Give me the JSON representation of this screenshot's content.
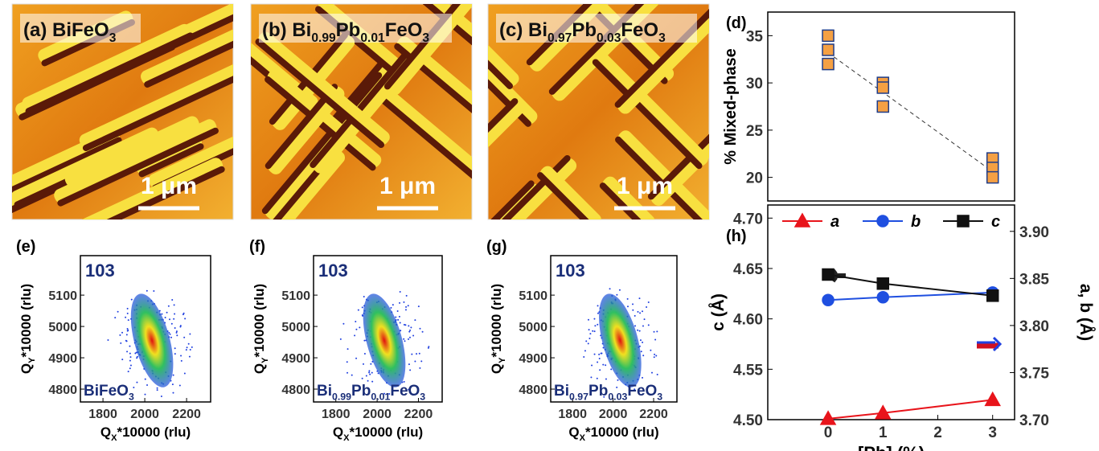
{
  "afm_panels": [
    {
      "label_parts": [
        "(a) BiFeO",
        "3"
      ],
      "scale_bar": "1 μm"
    },
    {
      "label_parts": [
        "(b) Bi",
        "0.99",
        "Pb",
        "0.01",
        "FeO",
        "3"
      ],
      "scale_bar": "1 μm"
    },
    {
      "label_parts": [
        "(c) Bi",
        "0.97",
        "Pb",
        "0.03",
        "FeO",
        "3"
      ],
      "scale_bar": "1 μm"
    }
  ],
  "chart_data": [
    {
      "type": "rsm",
      "panel": "(e)",
      "reflection": "103",
      "sample_parts": [
        "BiFeO",
        "3"
      ],
      "x_label_parts": [
        "Q",
        "X",
        "*10000 (rlu)"
      ],
      "y_label_parts": [
        "Q",
        "Y",
        "*10000 (rlu)"
      ],
      "xlim": [
        1692,
        2315
      ],
      "xticks": [
        1800,
        2000,
        2200
      ],
      "ylim": [
        4759,
        5226
      ],
      "yticks": [
        4800,
        4900,
        5000,
        5100
      ]
    },
    {
      "type": "rsm",
      "panel": "(f)",
      "reflection": "103",
      "sample_parts": [
        "Bi",
        "0.99",
        "Pb",
        "0.01",
        "FeO",
        "3"
      ],
      "x_label_parts": [
        "Q",
        "X",
        "*10000 (rlu)"
      ],
      "y_label_parts": [
        "Q",
        "Y",
        "*10000 (rlu)"
      ],
      "xlim": [
        1692,
        2315
      ],
      "xticks": [
        1800,
        2000,
        2200
      ],
      "ylim": [
        4759,
        5226
      ],
      "yticks": [
        4800,
        4900,
        5000,
        5100
      ]
    },
    {
      "type": "rsm",
      "panel": "(g)",
      "reflection": "103",
      "sample_parts": [
        "Bi",
        "0.97",
        "Pb",
        "0.03",
        "FeO",
        "3"
      ],
      "x_label_parts": [
        "Q",
        "X",
        "*10000 (rlu)"
      ],
      "y_label_parts": [
        "Q",
        "Y",
        "*10000 (rlu)"
      ],
      "xlim": [
        1692,
        2315
      ],
      "xticks": [
        1800,
        2000,
        2200
      ],
      "ylim": [
        4759,
        5226
      ],
      "yticks": [
        4800,
        4900,
        5000,
        5100
      ]
    },
    {
      "type": "scatter",
      "panel": "(d)",
      "y_label": "% Mixed-phase",
      "x": [
        0,
        0,
        0,
        1,
        1,
        1,
        3,
        3,
        3
      ],
      "values": [
        35,
        33.5,
        32,
        30,
        29.5,
        27.5,
        22,
        21,
        20
      ],
      "color": "#f5a043",
      "edge_color": "#1f3c88",
      "trend": {
        "x": [
          0,
          3
        ],
        "values": [
          33.2,
          20.6
        ]
      },
      "xlim": [
        -1.1,
        3.4
      ],
      "ylim": [
        17.5,
        37.5
      ],
      "yticks": [
        20,
        25,
        30,
        35
      ]
    },
    {
      "type": "line",
      "panel": "(h)",
      "x": [
        0,
        1,
        3
      ],
      "x_label": "[Pb] (%)",
      "y_label": "c (Å)",
      "y2_label": "a, b (Å)",
      "series": [
        {
          "name": "a",
          "color": "#e8141b",
          "marker": "triangle",
          "axis": "y2",
          "values": [
            3.701,
            3.707,
            3.721
          ]
        },
        {
          "name": "b",
          "color": "#1f4fe0",
          "marker": "circle",
          "axis": "y2",
          "values": [
            3.827,
            3.83,
            3.835
          ]
        },
        {
          "name": "c",
          "color": "#111111",
          "marker": "square",
          "values": [
            4.644,
            4.635,
            4.623
          ]
        }
      ],
      "xlim": [
        -1.1,
        3.4
      ],
      "xticks": [
        0,
        1,
        2,
        3
      ],
      "ylim": [
        4.5,
        4.713
      ],
      "yticks": [
        {
          "value": 4.5,
          "label": "4.50"
        },
        4.55,
        {
          "value": 4.6,
          "label": "4.60"
        },
        4.65,
        {
          "value": 4.7,
          "label": "4.70"
        }
      ],
      "y2lim": [
        3.7,
        3.928
      ],
      "y2ticks": [
        {
          "value": 3.7,
          "label": "3.70"
        },
        3.75,
        {
          "value": 3.8,
          "label": "3.80"
        },
        3.85,
        {
          "value": 3.9,
          "label": "3.90"
        }
      ]
    }
  ]
}
